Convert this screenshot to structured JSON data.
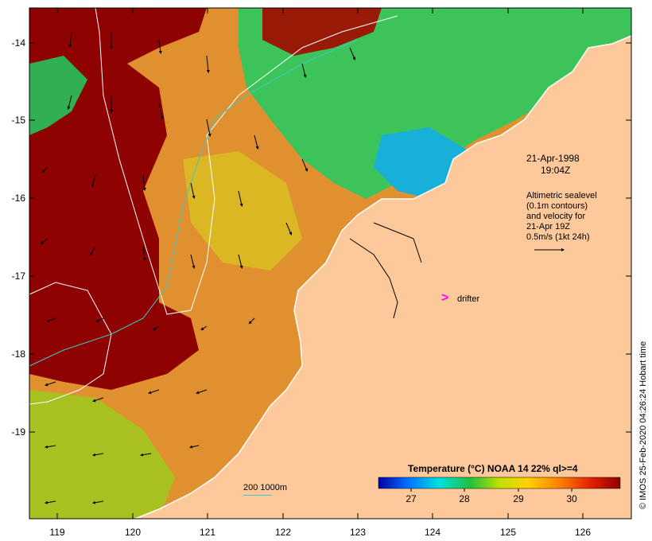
{
  "map": {
    "lat_ticks": [
      "-14",
      "-15",
      "-16",
      "-17",
      "-18",
      "-19"
    ],
    "lon_ticks": [
      "119",
      "120",
      "121",
      "122",
      "123",
      "124",
      "125",
      "126"
    ],
    "land_color": "#fdc99b",
    "sst_hot": "#8b0000",
    "sst_mid": "#e89530",
    "sst_cool": "#20c060",
    "contour_color": "#3fc8c8",
    "shoreline_color": "#ffffff"
  },
  "annotation": {
    "date": "21-Apr-1998",
    "time": "19:04Z",
    "desc_lines": [
      "Altimetric sealevel",
      "(0.1m contours)",
      "and velocity for",
      "21-Apr 19Z",
      "0.5m/s (1kt 24h)"
    ]
  },
  "drifter": {
    "label": "drifter"
  },
  "contour_legend": {
    "label": "200  1000m"
  },
  "colorbar": {
    "title": "Temperature (°C) NOAA 14 22% ql>=4",
    "ticks": [
      "27",
      "28",
      "29",
      "30"
    ],
    "stops": [
      "#0000a0",
      "#0070ff",
      "#00e0e0",
      "#20c040",
      "#c0e000",
      "#ffd000",
      "#ff8000",
      "#e02000",
      "#900000"
    ]
  },
  "credit": "© IMOS 25-Feb-2020 04:26:24 Hobart time"
}
